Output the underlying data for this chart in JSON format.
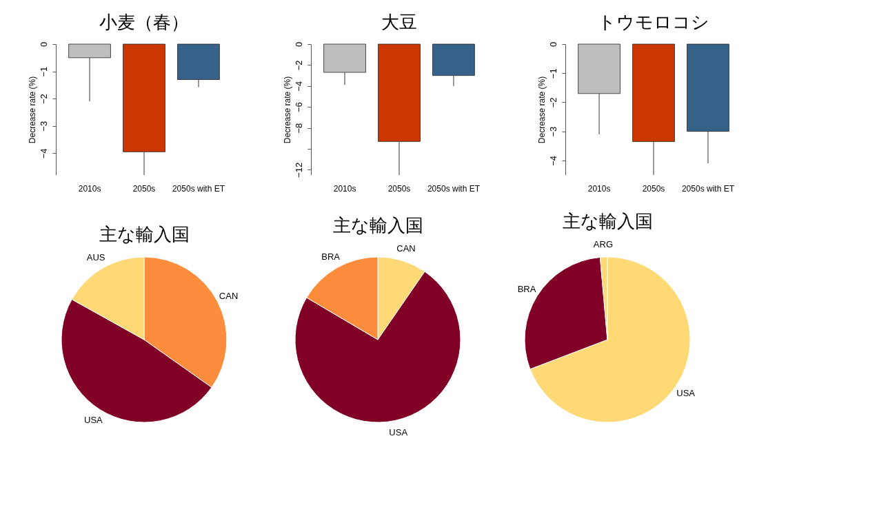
{
  "chart_data": [
    {
      "type": "bar",
      "title": "小麦（春）",
      "ylabel": "Decrease rate (%)",
      "categories": [
        "2010s",
        "2050s",
        "2050s with ET"
      ],
      "values": [
        -0.5,
        -3.95,
        -1.3
      ],
      "colors": [
        "#bebebe",
        "#cc3700",
        "#36628a"
      ],
      "errors": [
        [
          -2.1,
          -0.5
        ],
        [
          -4.8,
          -3.95
        ],
        [
          -1.58,
          -1.3
        ]
      ],
      "ylim": [
        -4.8,
        0
      ],
      "yticks": [
        0,
        -1,
        -2,
        -3,
        -4
      ]
    },
    {
      "type": "bar",
      "title": "大豆",
      "ylabel": "Decrease rate (%)",
      "categories": [
        "2010s",
        "2050s",
        "2050s with ET"
      ],
      "values": [
        -2.7,
        -9.3,
        -3.0
      ],
      "colors": [
        "#bebebe",
        "#cc3700",
        "#36628a"
      ],
      "errors": [
        [
          -3.9,
          -2.7
        ],
        [
          -12.5,
          -9.3
        ],
        [
          -4.0,
          -3.0
        ]
      ],
      "ylim": [
        -12.5,
        0
      ],
      "yticks": [
        0,
        -2,
        -4,
        -6,
        -8,
        {
          "value": -10,
          "label": null
        },
        -12
      ]
    },
    {
      "type": "bar",
      "title": "トウモロコシ",
      "ylabel": "Decrease rate (%)",
      "categories": [
        "2010s",
        "2050s",
        "2050s with ET"
      ],
      "values": [
        -1.7,
        -3.35,
        -3.0
      ],
      "colors": [
        "#bebebe",
        "#cc3700",
        "#36628a"
      ],
      "errors": [
        [
          -3.1,
          -1.7
        ],
        [
          -4.5,
          -3.35
        ],
        [
          -4.1,
          -3.0
        ]
      ],
      "ylim": [
        -4.5,
        0
      ],
      "yticks": [
        0,
        -1,
        -2,
        -3,
        -4
      ]
    },
    {
      "type": "pie",
      "title": "主な輸入国",
      "categories": [
        "CAN",
        "USA",
        "AUS"
      ],
      "values": [
        34.8,
        48.3,
        16.9
      ],
      "colors": [
        "#fd8d3c",
        "#800026",
        "#fed976"
      ]
    },
    {
      "type": "pie",
      "title": "主な輸入国",
      "categories": [
        "CAN",
        "USA",
        "BRA"
      ],
      "values": [
        9.6,
        73.9,
        16.5
      ],
      "colors": [
        "#fed976",
        "#800026",
        "#fd8d3c"
      ]
    },
    {
      "type": "pie",
      "title": "主な輸入国",
      "categories": [
        "USA",
        "BRA",
        "ARG"
      ],
      "values": [
        69.2,
        29.4,
        1.4
      ],
      "colors": [
        "#fed976",
        "#800026",
        "#fed976"
      ]
    }
  ]
}
